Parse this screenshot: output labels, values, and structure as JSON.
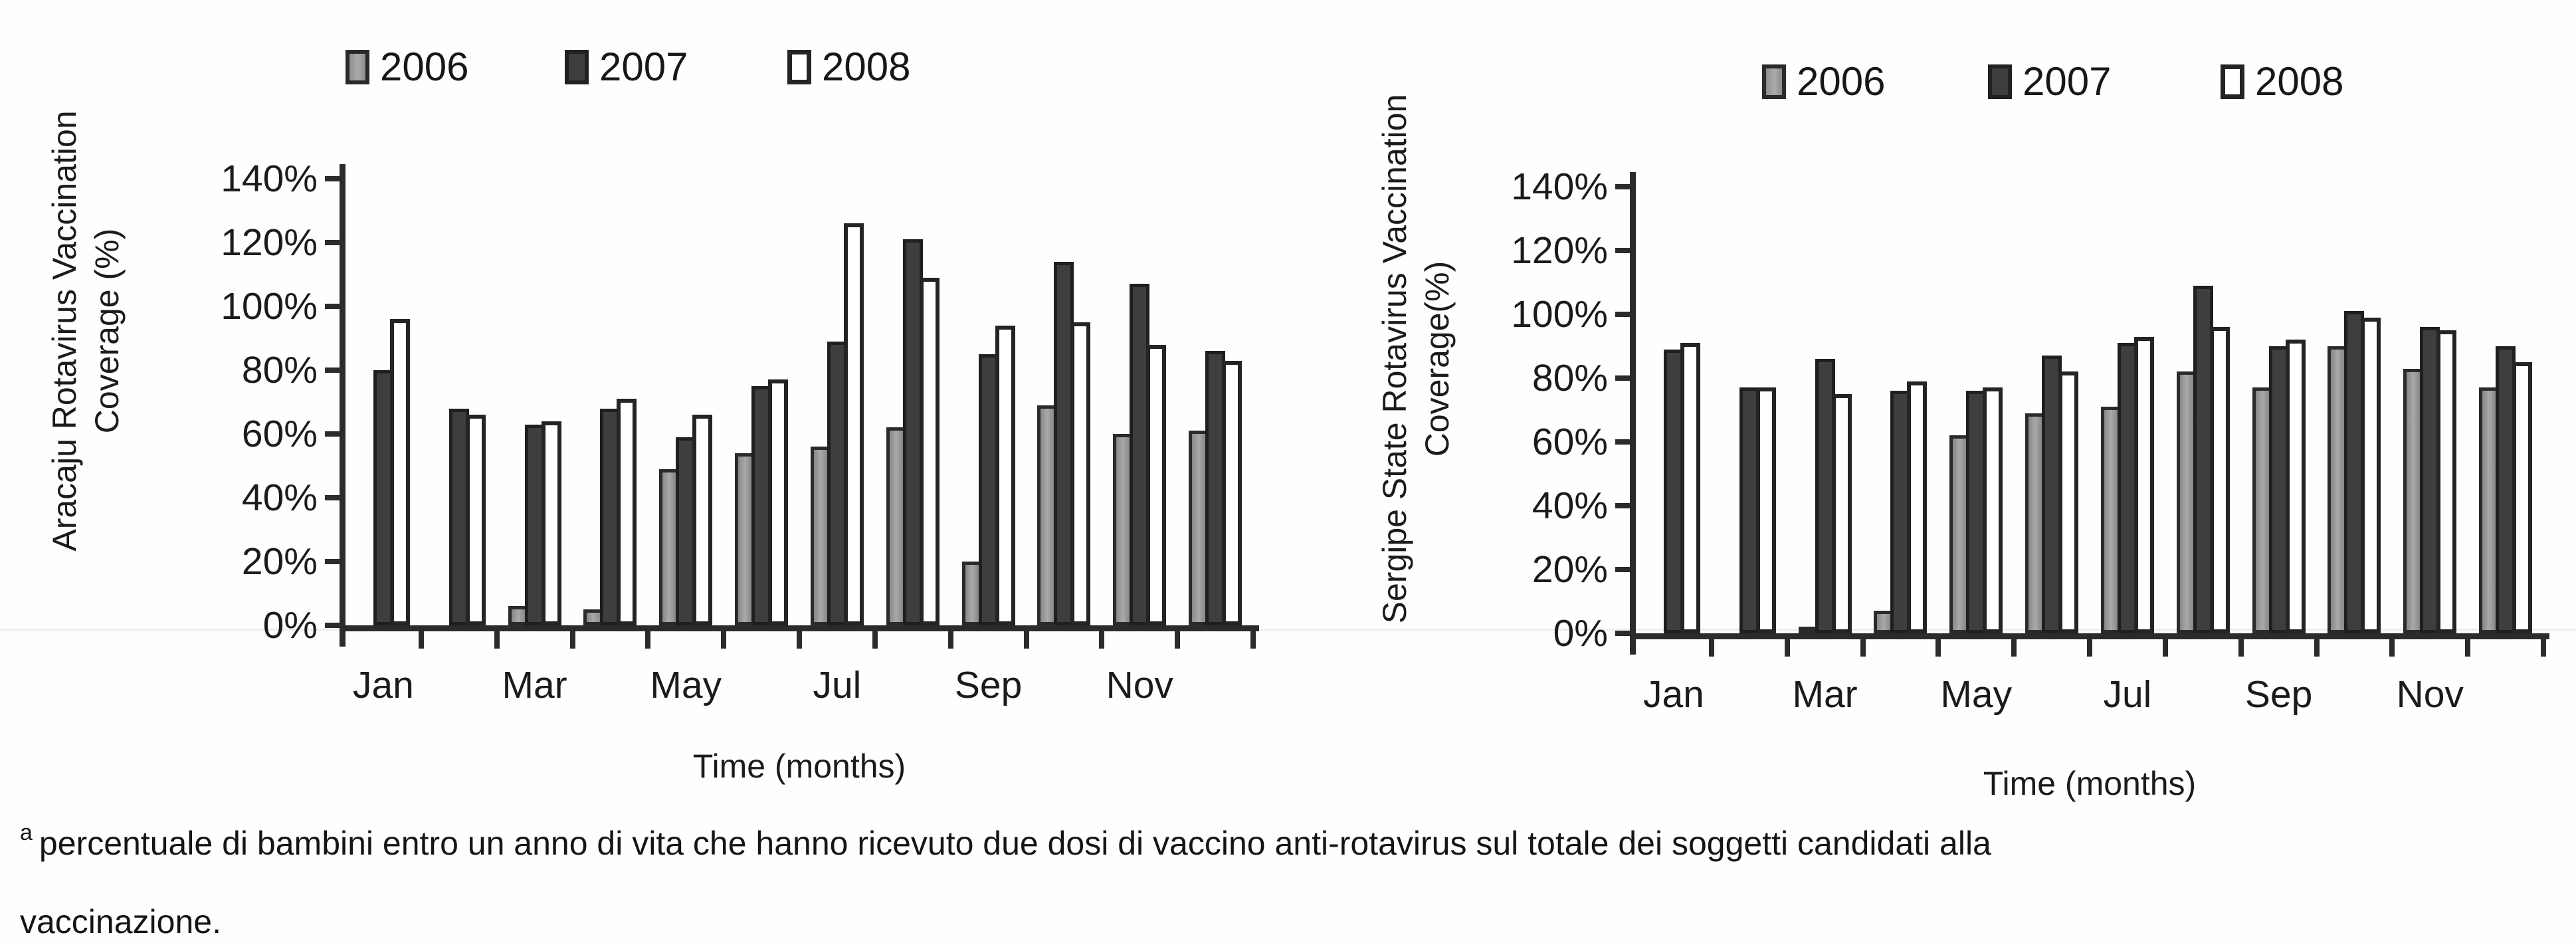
{
  "colors": {
    "axis": "#2b2b2b",
    "text": "#1b1b1b",
    "bar_2006_fill": "#979797",
    "bar_2007_fill": "#3e3e3e",
    "bar_2008_fill": "#ffffff",
    "bar_border": "#242424",
    "background": "#fefefe"
  },
  "legend": {
    "items": [
      {
        "label": "2006",
        "key": "2006",
        "swatch": "gray-filled-square-icon"
      },
      {
        "label": "2007",
        "key": "2007",
        "swatch": "dark-filled-square-icon"
      },
      {
        "label": "2008",
        "key": "2008",
        "swatch": "white-outlined-square-icon"
      }
    ]
  },
  "chart_data": [
    {
      "type": "bar",
      "title": "",
      "ylabel_lines": [
        "Aracaju Rotavirus Vaccination",
        "Coverage (%)"
      ],
      "xlabel": "Time (months)",
      "ylim": [
        0,
        140
      ],
      "y_tick_step": 20,
      "y_tick_labels": [
        "0%",
        "20%",
        "40%",
        "60%",
        "80%",
        "100%",
        "120%",
        "140%"
      ],
      "grid": false,
      "legend_position": "top",
      "categories": [
        "Jan",
        "Feb",
        "Mar",
        "Apr",
        "May",
        "Jun",
        "Jul",
        "Aug",
        "Sep",
        "Oct",
        "Nov",
        "Dec"
      ],
      "x_tick_labels_shown": [
        "Jan",
        "Mar",
        "May",
        "Jul",
        "Sep",
        "Nov"
      ],
      "series": [
        {
          "name": "2006",
          "values": [
            null,
            null,
            6,
            5,
            49,
            54,
            56,
            62,
            20,
            69,
            60,
            61
          ]
        },
        {
          "name": "2007",
          "values": [
            80,
            68,
            63,
            68,
            59,
            75,
            89,
            121,
            85,
            114,
            107,
            86
          ]
        },
        {
          "name": "2008",
          "values": [
            96,
            66,
            64,
            71,
            66,
            77,
            126,
            109,
            94,
            95,
            88,
            83
          ]
        }
      ]
    },
    {
      "type": "bar",
      "title": "",
      "ylabel_lines": [
        "Sergipe State Rotavirus Vaccination",
        "Coverage(%)"
      ],
      "xlabel": "Time (months)",
      "ylim": [
        0,
        140
      ],
      "y_tick_step": 20,
      "y_tick_labels": [
        "0%",
        "20%",
        "40%",
        "60%",
        "80%",
        "100%",
        "120%",
        "140%"
      ],
      "grid": false,
      "legend_position": "top",
      "categories": [
        "Jan",
        "Feb",
        "Mar",
        "Apr",
        "May",
        "Jun",
        "Jul",
        "Aug",
        "Sep",
        "Oct",
        "Nov",
        "Dec"
      ],
      "x_tick_labels_shown": [
        "Jan",
        "Mar",
        "May",
        "Jul",
        "Sep",
        "Nov"
      ],
      "series": [
        {
          "name": "2006",
          "values": [
            null,
            null,
            2,
            7,
            62,
            69,
            71,
            82,
            77,
            90,
            83,
            77
          ]
        },
        {
          "name": "2007",
          "values": [
            89,
            77,
            86,
            76,
            76,
            87,
            91,
            109,
            90,
            101,
            96,
            90
          ]
        },
        {
          "name": "2008",
          "values": [
            91,
            77,
            75,
            79,
            77,
            82,
            93,
            96,
            92,
            99,
            95,
            85
          ]
        }
      ]
    }
  ],
  "footnote": {
    "superscript": "a",
    "line1": "percentuale di bambini entro un anno di vita che hanno ricevuto due dosi di vaccino anti-rotavirus sul totale dei soggetti candidati alla",
    "line2": "vaccinazione."
  }
}
